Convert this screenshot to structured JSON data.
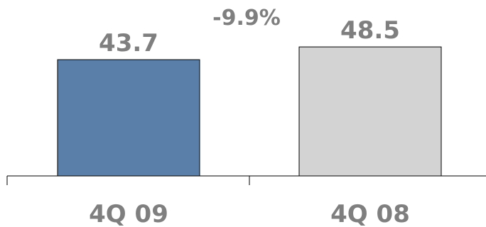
{
  "chart_data": {
    "type": "bar",
    "categories": [
      "4Q 09",
      "4Q 08"
    ],
    "values": [
      43.7,
      48.5
    ],
    "data_labels": [
      "43.7",
      "48.5"
    ],
    "colors": [
      "#5a7fa8",
      "#d3d3d3"
    ],
    "annotation": "-9.9%",
    "title": "",
    "xlabel": "",
    "ylabel": "",
    "ylim": [
      0,
      60
    ],
    "grid": false,
    "legend": "none"
  }
}
